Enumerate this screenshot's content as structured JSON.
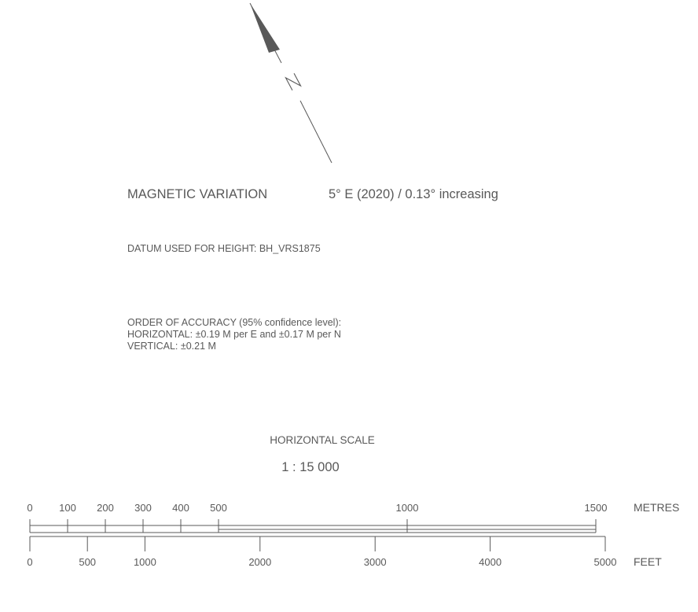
{
  "north_arrow": {
    "label": "N"
  },
  "magnetic_variation": {
    "label": "MAGNETIC VARIATION",
    "value": "5°  E (2020) / 0.13° increasing"
  },
  "datum": {
    "text": "DATUM USED FOR HEIGHT: BH_VRS1875"
  },
  "accuracy": {
    "title": "ORDER OF ACCURACY (95% confidence level):",
    "horizontal": "HORIZONTAL:  ±0.19 M per E and ±0.17 M per N",
    "vertical": "VERTICAL:  ±0.21 M"
  },
  "scale": {
    "title": "HORIZONTAL SCALE",
    "ratio": "1 : 15 000",
    "metres": {
      "unit": "METRES",
      "ticks": [
        0,
        100,
        200,
        300,
        400,
        500,
        1000,
        1500
      ]
    },
    "feet": {
      "unit": "FEET",
      "ticks": [
        0,
        500,
        1000,
        2000,
        3000,
        4000,
        5000
      ]
    }
  }
}
